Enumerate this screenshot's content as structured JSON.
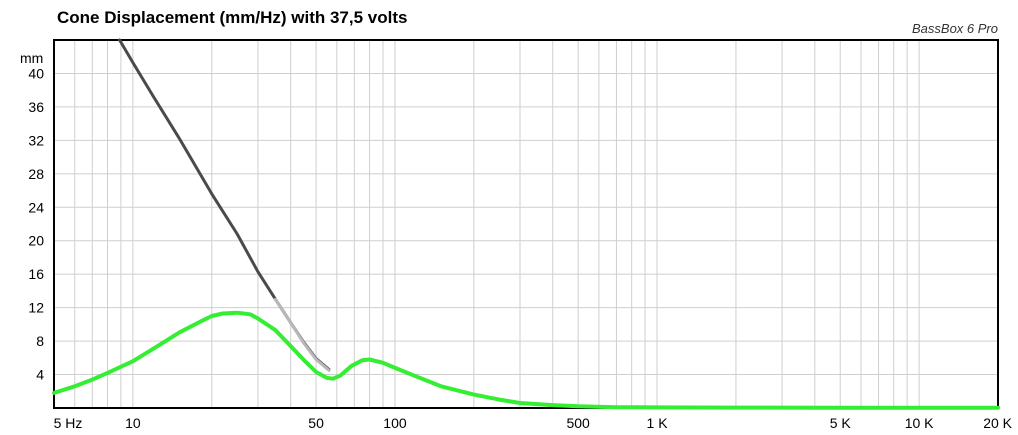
{
  "chart_data": {
    "type": "line",
    "title": "Cone Displacement (mm/Hz) with 37,5 volts",
    "credit": "BassBox 6 Pro",
    "xscale": "log",
    "xlim": [
      5,
      20000
    ],
    "ylim": [
      0,
      44
    ],
    "y_unit_label": "mm",
    "y_ticks": [
      4,
      8,
      12,
      16,
      20,
      24,
      28,
      32,
      36,
      40
    ],
    "x_ticks": [
      {
        "value": 5,
        "label": "5 Hz"
      },
      {
        "value": 10,
        "label": "10"
      },
      {
        "value": 50,
        "label": "50"
      },
      {
        "value": 100,
        "label": "100"
      },
      {
        "value": 500,
        "label": "500"
      },
      {
        "value": 1000,
        "label": "1 K"
      },
      {
        "value": 5000,
        "label": "5 K"
      },
      {
        "value": 10000,
        "label": "10 K"
      },
      {
        "value": 20000,
        "label": "20 K"
      }
    ],
    "grid": true,
    "series": [
      {
        "color": "#4a4a4a",
        "points": [
          [
            8.9,
            44
          ],
          [
            10,
            41.3
          ],
          [
            12,
            37.2
          ],
          [
            15,
            32.3
          ],
          [
            20,
            25.6
          ],
          [
            25,
            20.8
          ],
          [
            30,
            16.3
          ],
          [
            35,
            13.0
          ],
          [
            40,
            10.2
          ],
          [
            45,
            7.8
          ],
          [
            50,
            5.9
          ],
          [
            56,
            4.6
          ]
        ]
      },
      {
        "color": "#b8b8b8",
        "points": [
          [
            35,
            13.0
          ],
          [
            40,
            10.2
          ],
          [
            45,
            7.7
          ],
          [
            50,
            5.8
          ],
          [
            56,
            4.5
          ]
        ]
      },
      {
        "color": "#33ee33",
        "points": [
          [
            5,
            1.8
          ],
          [
            6,
            2.6
          ],
          [
            7,
            3.4
          ],
          [
            8,
            4.2
          ],
          [
            10,
            5.6
          ],
          [
            12,
            7.1
          ],
          [
            15,
            9.0
          ],
          [
            18,
            10.3
          ],
          [
            20,
            11.0
          ],
          [
            22,
            11.3
          ],
          [
            25,
            11.4
          ],
          [
            28,
            11.2
          ],
          [
            30,
            10.7
          ],
          [
            35,
            9.3
          ],
          [
            40,
            7.4
          ],
          [
            45,
            5.7
          ],
          [
            50,
            4.3
          ],
          [
            55,
            3.6
          ],
          [
            58,
            3.5
          ],
          [
            62,
            3.9
          ],
          [
            68,
            5.0
          ],
          [
            75,
            5.7
          ],
          [
            80,
            5.8
          ],
          [
            90,
            5.4
          ],
          [
            100,
            4.8
          ],
          [
            120,
            3.8
          ],
          [
            150,
            2.6
          ],
          [
            200,
            1.6
          ],
          [
            250,
            1.0
          ],
          [
            300,
            0.6
          ],
          [
            400,
            0.35
          ],
          [
            500,
            0.2
          ],
          [
            700,
            0.1
          ],
          [
            1000,
            0.07
          ],
          [
            2000,
            0.05
          ],
          [
            5000,
            0.04
          ],
          [
            10000,
            0.04
          ],
          [
            20000,
            0.04
          ]
        ]
      }
    ]
  }
}
